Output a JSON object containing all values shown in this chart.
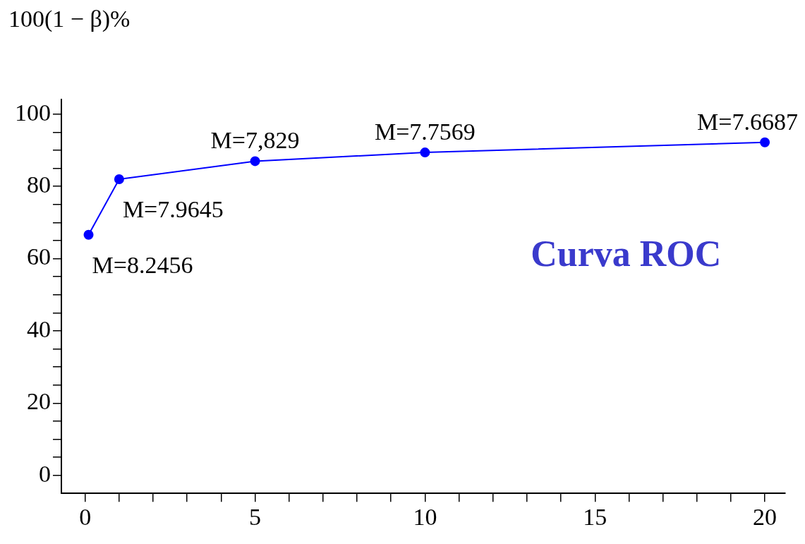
{
  "chart_data": {
    "type": "line",
    "ylabel": "100(1 − β)%",
    "x": [
      0.1,
      1,
      5,
      10,
      20
    ],
    "series": [
      {
        "color": "#0000ff",
        "values": [
          66.6,
          82,
          87,
          89.4,
          92.2
        ]
      }
    ],
    "marker": "circle",
    "line_style": "solid",
    "grid": false,
    "legend": false,
    "xlim": [
      -0.7,
      20.6
    ],
    "ylim": [
      -5,
      104
    ],
    "xticks": [
      0,
      {
        "value": 1,
        "label": null
      },
      {
        "value": 2,
        "label": null
      },
      {
        "value": 3,
        "label": null
      },
      {
        "value": 4,
        "label": null
      },
      5,
      {
        "value": 6,
        "label": null
      },
      {
        "value": 7,
        "label": null
      },
      {
        "value": 8,
        "label": null
      },
      {
        "value": 9,
        "label": null
      },
      10,
      {
        "value": 11,
        "label": null
      },
      {
        "value": 12,
        "label": null
      },
      {
        "value": 13,
        "label": null
      },
      {
        "value": 14,
        "label": null
      },
      15,
      {
        "value": 16,
        "label": null
      },
      {
        "value": 17,
        "label": null
      },
      {
        "value": 18,
        "label": null
      },
      {
        "value": 19,
        "label": null
      },
      20
    ],
    "yticks": [
      0,
      {
        "value": 5,
        "label": null
      },
      {
        "value": 10,
        "label": null
      },
      {
        "value": 15,
        "label": null
      },
      20,
      {
        "value": 25,
        "label": null
      },
      {
        "value": 30,
        "label": null
      },
      {
        "value": 35,
        "label": null
      },
      40,
      {
        "value": 45,
        "label": null
      },
      {
        "value": 50,
        "label": null
      },
      {
        "value": 55,
        "label": null
      },
      60,
      {
        "value": 65,
        "label": null
      },
      {
        "value": 70,
        "label": null
      },
      {
        "value": 75,
        "label": null
      },
      80,
      {
        "value": 85,
        "label": null
      },
      {
        "value": 90,
        "label": null
      },
      {
        "value": 95,
        "label": null
      },
      100
    ],
    "annotations": [
      {
        "text": "M=8.2456",
        "x": 0.1,
        "y": 66.6
      },
      {
        "text": "M=7.9645",
        "x": 1,
        "y": 82
      },
      {
        "text": "M=7,829",
        "x": 5,
        "y": 87
      },
      {
        "text": "M=7.7569",
        "x": 10,
        "y": 89.4
      },
      {
        "text": "M=7.6687",
        "x": 20,
        "y": 92.2
      },
      "Curva ROC"
    ]
  }
}
